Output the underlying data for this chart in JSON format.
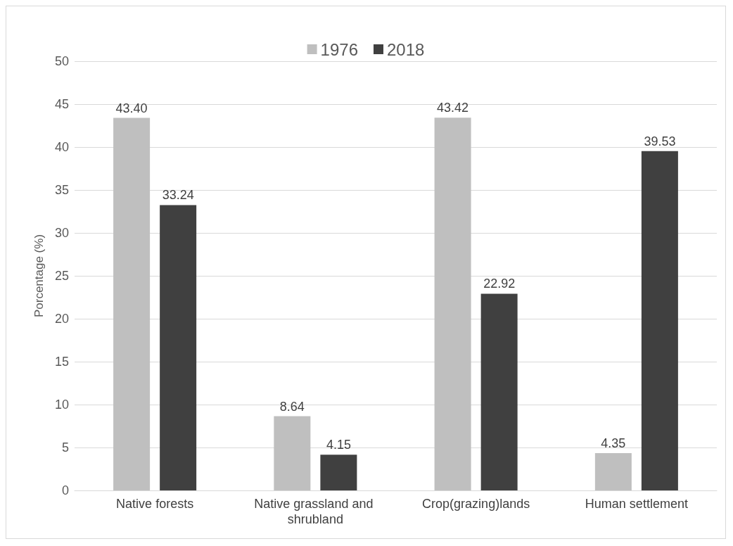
{
  "chart_data": {
    "type": "bar",
    "ylabel": "Porcentage (%)",
    "categories": [
      "Native forests",
      "Native grassland and shrubland",
      "Crop(grazing)lands",
      "Human settlement"
    ],
    "series": [
      {
        "name": "1976",
        "color": "#bfbfbf",
        "values": [
          43.4,
          8.64,
          43.42,
          4.35
        ],
        "value_labels": [
          "43.40",
          "8.64",
          "43.42",
          "4.35"
        ]
      },
      {
        "name": "2018",
        "color": "#404040",
        "values": [
          33.24,
          4.15,
          22.92,
          39.53
        ],
        "value_labels": [
          "33.24",
          "4.15",
          "22.92",
          "39.53"
        ]
      }
    ],
    "ylim": [
      0,
      50
    ],
    "yticks": [
      0,
      5,
      10,
      15,
      20,
      25,
      30,
      35,
      40,
      45,
      50
    ],
    "grid": "y",
    "legend": "top"
  }
}
